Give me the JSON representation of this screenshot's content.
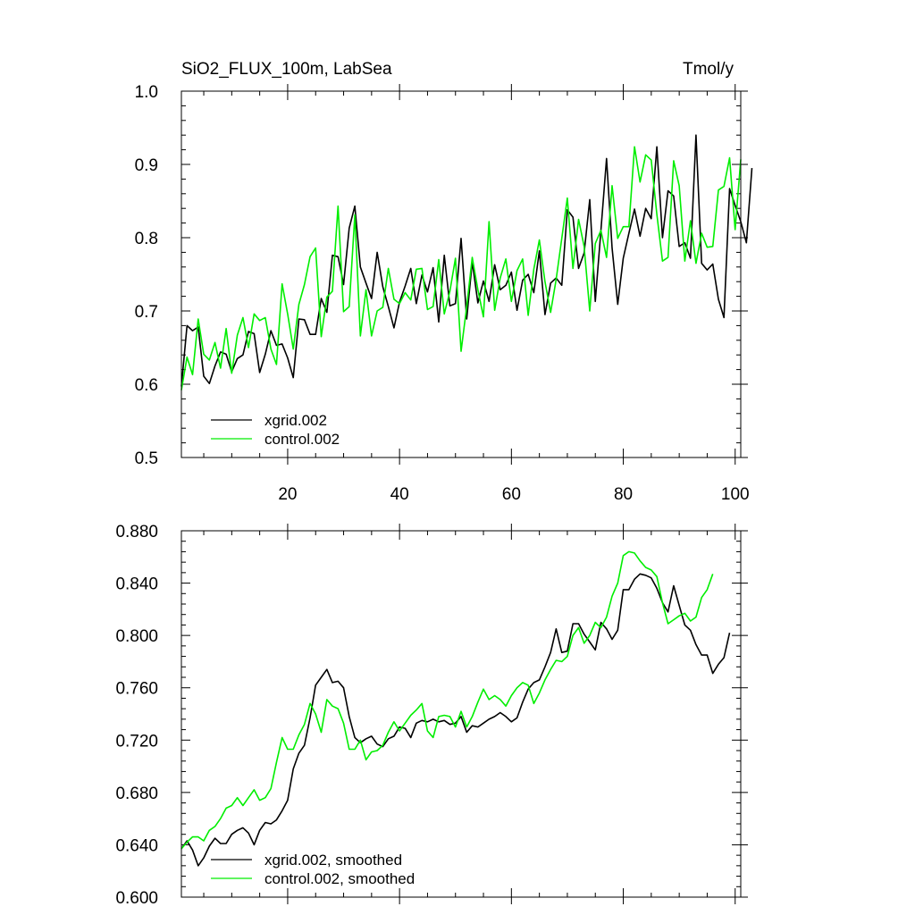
{
  "chart_data": [
    {
      "type": "line",
      "title": "SiO2_FLUX_100m, LabSea",
      "units": "Tmol/y",
      "xlim": [
        1,
        101
      ],
      "ylim": [
        0.5,
        1.0
      ],
      "xticks": [
        20,
        40,
        60,
        80,
        100
      ],
      "yticks": [
        0.5,
        0.6,
        0.7,
        0.8,
        0.9,
        1.0
      ],
      "ytick_labels": [
        "0.5",
        "0.6",
        "0.7",
        "0.8",
        "0.9",
        "1.0"
      ],
      "legend": "bottom-left",
      "series": [
        {
          "name": "xgrid.002",
          "color": "#000000",
          "values": [
            0.597,
            0.68,
            0.673,
            0.678,
            0.611,
            0.601,
            0.625,
            0.644,
            0.641,
            0.617,
            0.635,
            0.64,
            0.672,
            0.669,
            0.616,
            0.641,
            0.673,
            0.653,
            0.655,
            0.636,
            0.609,
            0.689,
            0.688,
            0.668,
            0.668,
            0.717,
            0.698,
            0.776,
            0.774,
            0.736,
            0.813,
            0.843,
            0.76,
            0.738,
            0.717,
            0.78,
            0.733,
            0.706,
            0.677,
            0.712,
            0.734,
            0.758,
            0.71,
            0.749,
            0.726,
            0.759,
            0.685,
            0.776,
            0.707,
            0.71,
            0.799,
            0.689,
            0.767,
            0.711,
            0.741,
            0.713,
            0.763,
            0.729,
            0.735,
            0.753,
            0.701,
            0.742,
            0.75,
            0.725,
            0.782,
            0.695,
            0.738,
            0.745,
            0.735,
            0.838,
            0.828,
            0.758,
            0.779,
            0.852,
            0.713,
            0.81,
            0.908,
            0.786,
            0.709,
            0.772,
            0.806,
            0.839,
            0.802,
            0.84,
            0.826,
            0.924,
            0.8,
            0.864,
            0.857,
            0.788,
            0.793,
            0.772,
            0.94,
            0.765,
            0.756,
            0.764,
            0.716,
            0.691,
            0.867,
            0.844,
            0.822,
            0.793,
            0.895
          ]
        },
        {
          "name": "control.002",
          "color": "#00ee00",
          "values": [
            0.592,
            0.637,
            0.613,
            0.689,
            0.641,
            0.633,
            0.657,
            0.622,
            0.676,
            0.615,
            0.667,
            0.691,
            0.65,
            0.696,
            0.687,
            0.691,
            0.648,
            0.627,
            0.737,
            0.696,
            0.648,
            0.709,
            0.736,
            0.774,
            0.786,
            0.665,
            0.719,
            0.727,
            0.843,
            0.699,
            0.706,
            0.831,
            0.666,
            0.729,
            0.666,
            0.7,
            0.705,
            0.758,
            0.716,
            0.71,
            0.725,
            0.715,
            0.757,
            0.758,
            0.702,
            0.706,
            0.77,
            0.696,
            0.727,
            0.772,
            0.645,
            0.706,
            0.773,
            0.729,
            0.692,
            0.822,
            0.701,
            0.745,
            0.771,
            0.713,
            0.755,
            0.771,
            0.694,
            0.757,
            0.797,
            0.74,
            0.698,
            0.743,
            0.799,
            0.854,
            0.758,
            0.825,
            0.788,
            0.7,
            0.792,
            0.81,
            0.773,
            0.871,
            0.799,
            0.815,
            0.815,
            0.924,
            0.876,
            0.913,
            0.906,
            0.832,
            0.768,
            0.773,
            0.905,
            0.871,
            0.768,
            0.823,
            0.765,
            0.806,
            0.787,
            0.788,
            0.865,
            0.87,
            0.909,
            0.811,
            0.907
          ]
        }
      ]
    },
    {
      "type": "line",
      "title": "",
      "xlim": [
        1,
        101
      ],
      "ylim": [
        0.6,
        0.88
      ],
      "xticks": [
        20,
        40,
        60,
        80,
        100
      ],
      "yticks": [
        0.6,
        0.64,
        0.68,
        0.72,
        0.76,
        0.8,
        0.84,
        0.88
      ],
      "ytick_labels": [
        "0.600",
        "0.640",
        "0.680",
        "0.720",
        "0.760",
        "0.800",
        "0.840",
        "0.880"
      ],
      "legend": "bottom-left",
      "series": [
        {
          "name": "xgrid.002, smoothed",
          "color": "#000000",
          "values": [
            0.637,
            0.643,
            0.636,
            0.624,
            0.63,
            0.639,
            0.645,
            0.641,
            0.641,
            0.648,
            0.651,
            0.653,
            0.649,
            0.64,
            0.651,
            0.657,
            0.656,
            0.659,
            0.666,
            0.674,
            0.698,
            0.71,
            0.716,
            0.737,
            0.762,
            0.768,
            0.774,
            0.764,
            0.765,
            0.76,
            0.738,
            0.722,
            0.718,
            0.721,
            0.723,
            0.717,
            0.715,
            0.721,
            0.723,
            0.73,
            0.729,
            0.722,
            0.733,
            0.735,
            0.734,
            0.736,
            0.734,
            0.735,
            0.732,
            0.733,
            0.738,
            0.726,
            0.731,
            0.73,
            0.733,
            0.736,
            0.738,
            0.741,
            0.738,
            0.734,
            0.737,
            0.749,
            0.759,
            0.764,
            0.766,
            0.776,
            0.787,
            0.805,
            0.787,
            0.788,
            0.809,
            0.809,
            0.801,
            0.795,
            0.789,
            0.81,
            0.805,
            0.797,
            0.804,
            0.835,
            0.835,
            0.843,
            0.847,
            0.846,
            0.844,
            0.836,
            0.825,
            0.818,
            0.838,
            0.823,
            0.808,
            0.804,
            0.793,
            0.785,
            0.785,
            0.771,
            0.778,
            0.783,
            0.802
          ]
        },
        {
          "name": "control.002, smoothed",
          "color": "#00ee00",
          "values": [
            0.637,
            0.642,
            0.646,
            0.646,
            0.643,
            0.651,
            0.654,
            0.66,
            0.668,
            0.67,
            0.676,
            0.67,
            0.676,
            0.682,
            0.674,
            0.676,
            0.683,
            0.703,
            0.722,
            0.713,
            0.713,
            0.724,
            0.732,
            0.748,
            0.74,
            0.726,
            0.751,
            0.746,
            0.744,
            0.733,
            0.713,
            0.713,
            0.72,
            0.705,
            0.711,
            0.712,
            0.716,
            0.726,
            0.734,
            0.727,
            0.733,
            0.739,
            0.743,
            0.748,
            0.727,
            0.722,
            0.738,
            0.739,
            0.738,
            0.73,
            0.742,
            0.73,
            0.738,
            0.749,
            0.759,
            0.751,
            0.754,
            0.751,
            0.746,
            0.754,
            0.76,
            0.764,
            0.762,
            0.748,
            0.756,
            0.766,
            0.774,
            0.781,
            0.78,
            0.784,
            0.8,
            0.806,
            0.794,
            0.8,
            0.81,
            0.806,
            0.814,
            0.83,
            0.84,
            0.861,
            0.864,
            0.863,
            0.857,
            0.852,
            0.85,
            0.845,
            0.825,
            0.809,
            0.812,
            0.815,
            0.817,
            0.811,
            0.814,
            0.829,
            0.835,
            0.847
          ]
        }
      ]
    }
  ]
}
